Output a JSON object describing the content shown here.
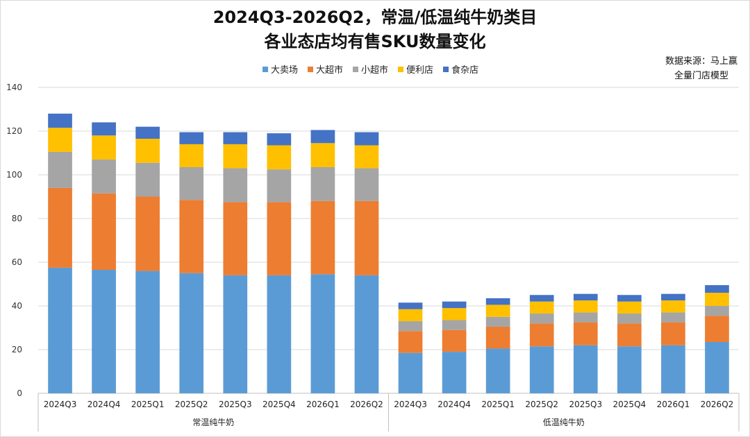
{
  "title_lines": [
    "2024Q3-2026Q2，常温/低温纯牛奶类目",
    "各业态店均有售SKU数量变化"
  ],
  "source_lines": [
    "数据来源：马上赢",
    "全量门店模型"
  ],
  "colors": {
    "大卖场": "#5B9BD5",
    "大超市": "#ED7D31",
    "小超市": "#A5A5A5",
    "便利店": "#FFC000",
    "食杂店": "#4472C4"
  },
  "chart_data": {
    "type": "bar",
    "stacked": true,
    "title": "2024Q3-2026Q2，常温/低温纯牛奶类目 各业态店均有售SKU数量变化",
    "ylim": [
      0,
      140
    ],
    "yticks": [
      0,
      20,
      40,
      60,
      80,
      100,
      120,
      140
    ],
    "grid": true,
    "legend_position": "top",
    "groups": [
      {
        "name": "常温纯牛奶",
        "categories": [
          "2024Q3",
          "2024Q4",
          "2025Q1",
          "2025Q2",
          "2025Q3",
          "2025Q4",
          "2026Q1",
          "2026Q2"
        ],
        "series": [
          {
            "name": "大卖场",
            "values": [
              57.5,
              56.5,
              56,
              55,
              54,
              54,
              54.5,
              54
            ]
          },
          {
            "name": "大超市",
            "values": [
              36.5,
              35,
              34,
              33.5,
              33.5,
              33.5,
              33.5,
              34
            ]
          },
          {
            "name": "小超市",
            "values": [
              16.5,
              15.5,
              15.5,
              15,
              15.5,
              15,
              15.5,
              15
            ]
          },
          {
            "name": "便利店",
            "values": [
              11,
              11,
              11,
              10.5,
              11,
              11,
              11,
              10.5
            ]
          },
          {
            "name": "食杂店",
            "values": [
              6.5,
              6,
              5.5,
              5.5,
              5.5,
              5.5,
              6,
              6
            ]
          }
        ]
      },
      {
        "name": "低温纯牛奶",
        "categories": [
          "2024Q3",
          "2024Q4",
          "2025Q1",
          "2025Q2",
          "2025Q3",
          "2025Q4",
          "2026Q1",
          "2026Q2"
        ],
        "series": [
          {
            "name": "大卖场",
            "values": [
              18.5,
              19,
              20.5,
              21.5,
              22,
              21.5,
              22,
              23.5
            ]
          },
          {
            "name": "大超市",
            "values": [
              10,
              10,
              10,
              10.5,
              10.5,
              10.5,
              10.5,
              12
            ]
          },
          {
            "name": "小超市",
            "values": [
              4.5,
              4.5,
              4.5,
              4.5,
              4.5,
              4.5,
              4.5,
              4.5
            ]
          },
          {
            "name": "便利店",
            "values": [
              5.5,
              5.5,
              5.5,
              5.5,
              5.5,
              5.5,
              5.5,
              6
            ]
          },
          {
            "name": "食杂店",
            "values": [
              3,
              3,
              3,
              3,
              3,
              3,
              3,
              3.5
            ]
          }
        ]
      }
    ]
  }
}
